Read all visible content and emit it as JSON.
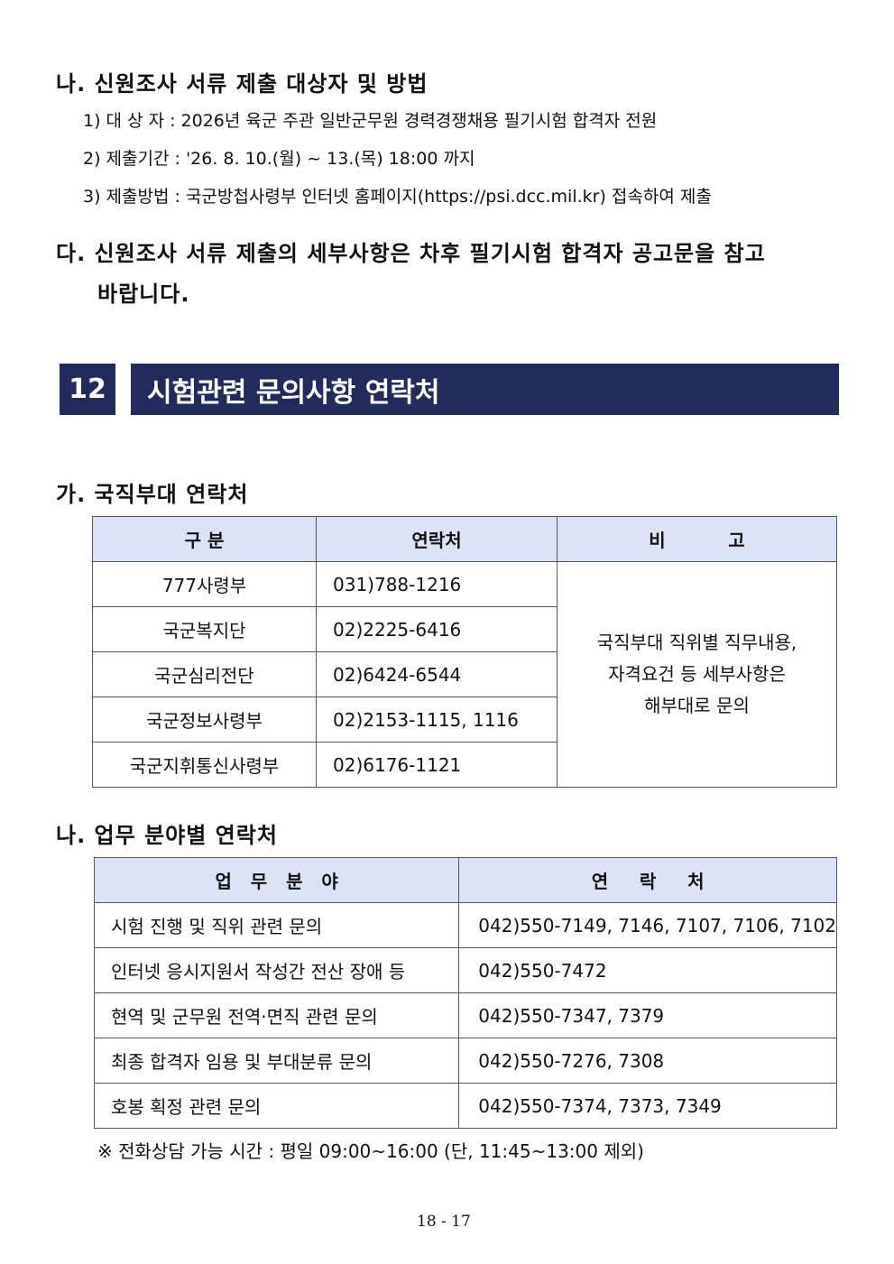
{
  "section_na": {
    "heading": "나. 신원조사 서류 제출 대상자 및 방법",
    "items": [
      "1) 대 상 자 : 2026년 육군 주관 일반군무원 경력경쟁채용 필기시험 합격자 전원",
      "2) 제출기간 : '26. 8. 10.(월) ~ 13.(목) 18:00 까지",
      "3) 제출방법 : 국군방첩사령부 인터넷 홈페이지(https://psi.dcc.mil.kr) 접속하여 제출"
    ]
  },
  "section_da": {
    "line1": "다. 신원조사 서류 제출의 세부사항은 차후 필기시험 합격자 공고문을 참고",
    "line2": "바랍니다."
  },
  "banner": {
    "number": "12",
    "title": "시험관련 문의사항 연락처"
  },
  "table1": {
    "heading": "가. 국직부대 연락처",
    "headers": [
      "구 분",
      "연락처",
      "비          고"
    ],
    "rows": [
      [
        "777사령부",
        "031)788-1216"
      ],
      [
        "국군복지단",
        "02)2225-6416"
      ],
      [
        "국군심리전단",
        "02)6424-6544"
      ],
      [
        "국군정보사령부",
        "02)2153-1115, 1116"
      ],
      [
        "국군지휘통신사령부",
        "02)6176-1121"
      ]
    ],
    "remark": [
      "국직부대 직위별 직무내용,",
      "자격요건 등 세부사항은",
      "해부대로 문의"
    ]
  },
  "table2": {
    "heading": "나. 업무 분야별 연락처",
    "headers": [
      "업   무   분   야",
      "연     락     처"
    ],
    "rows": [
      [
        "시험 진행 및 직위 관련 문의",
        "042)550-7149, 7146, 7107, 7106, 7102"
      ],
      [
        "인터넷 응시지원서 작성간 전산 장애 등",
        "042)550-7472"
      ],
      [
        "현역 및 군무원 전역·면직 관련 문의",
        "042)550-7347, 7379"
      ],
      [
        "최종 합격자 임용 및 부대분류 문의",
        "042)550-7276, 7308"
      ],
      [
        "호봉 획정 관련 문의",
        "042)550-7374, 7373, 7349"
      ]
    ]
  },
  "note": "※ 전화상담 가능 시간 : 평일 09:00~16:00 (단, 11:45~13:00 제외)",
  "page_number": "18 - 17"
}
